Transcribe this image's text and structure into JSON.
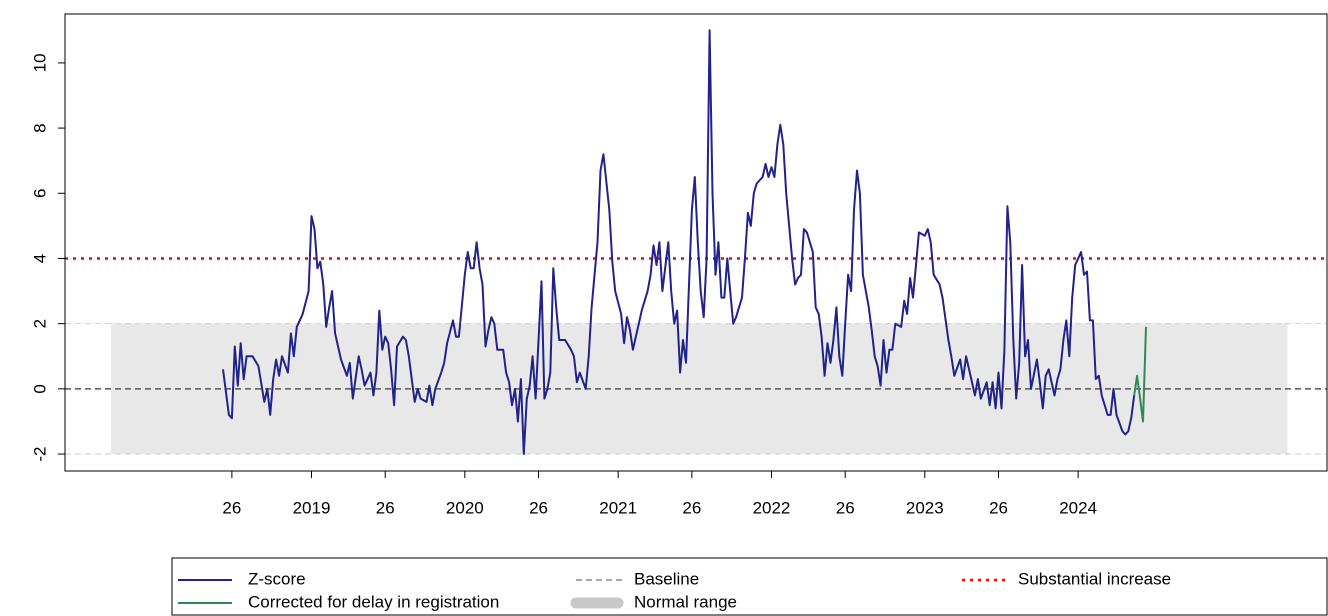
{
  "chart_data": {
    "type": "line",
    "xlim": [
      -31.6,
      396.4
    ],
    "ylim": [
      -2.52,
      11.5
    ],
    "xticks": [
      {
        "value": 25,
        "label": "26"
      },
      {
        "value": 52,
        "label": "2019"
      },
      {
        "value": 77,
        "label": "26"
      },
      {
        "value": 104,
        "label": "2020"
      },
      {
        "value": 129,
        "label": "26"
      },
      {
        "value": 156,
        "label": "2021"
      },
      {
        "value": 181,
        "label": "26"
      },
      {
        "value": 208,
        "label": "2022"
      },
      {
        "value": 233,
        "label": "26"
      },
      {
        "value": 260,
        "label": "2023"
      },
      {
        "value": 285,
        "label": "26"
      },
      {
        "value": 312,
        "label": "2024"
      }
    ],
    "yticks": [
      -2,
      0,
      2,
      4,
      6,
      8,
      10
    ],
    "normal_range": {
      "name": "Normal range",
      "xlim": [
        -16,
        383
      ],
      "ylim": [
        -2,
        2
      ],
      "color": "#e8e8e8"
    },
    "reference_lines": [
      {
        "name": "Baseline",
        "value": 0,
        "color": "#555555",
        "dash": "dashed"
      },
      {
        "name": "Substantial increase",
        "value": 4,
        "color": "#ff0000",
        "dash": "dotted"
      }
    ],
    "legend": {
      "position": "bottom"
    },
    "series": [
      {
        "name": "Z-score",
        "color": "#22228a",
        "x": [
          22,
          24,
          25,
          26,
          27,
          28,
          29,
          30,
          32,
          34,
          36,
          37,
          38,
          39,
          40,
          41,
          42,
          44,
          45,
          46,
          47,
          49,
          51,
          52,
          53,
          54,
          55,
          56,
          57,
          58,
          59,
          60,
          62,
          64,
          65,
          66,
          68,
          69,
          70,
          72,
          73,
          74,
          75,
          76,
          77,
          78,
          79,
          80,
          81,
          83,
          84,
          85,
          87,
          88,
          89,
          91,
          92,
          93,
          94,
          96,
          97,
          98,
          100,
          101,
          102,
          104,
          105,
          106,
          107,
          108,
          109,
          110,
          111,
          112,
          113,
          114,
          115,
          117,
          118,
          119,
          120,
          121,
          122,
          123,
          124,
          125,
          126,
          127,
          128,
          130,
          131,
          132,
          133,
          134,
          135,
          136,
          138,
          140,
          141,
          142,
          143,
          145,
          146,
          147,
          149,
          150,
          151,
          153,
          154,
          155,
          157,
          158,
          159,
          160,
          161,
          163,
          164,
          166,
          167,
          168,
          169,
          170,
          171,
          173,
          174,
          175,
          176,
          177,
          178,
          179,
          181,
          182,
          183,
          184,
          185,
          186,
          187,
          188,
          189,
          190,
          191,
          192,
          193,
          194,
          195,
          196,
          198,
          199,
          200,
          201,
          202,
          203,
          205,
          206,
          207,
          208,
          209,
          210,
          211,
          212,
          213,
          215,
          216,
          217,
          218,
          219,
          220,
          222,
          223,
          224,
          225,
          226,
          227,
          228,
          229,
          230,
          231,
          232,
          233,
          234,
          235,
          236,
          237,
          238,
          239,
          241,
          242,
          243,
          244,
          245,
          246,
          247,
          248,
          249,
          250,
          252,
          253,
          254,
          255,
          256,
          257,
          258,
          260,
          261,
          262,
          263,
          265,
          266,
          268,
          269,
          270,
          272,
          273,
          274,
          276,
          277,
          278,
          279,
          281,
          282,
          283,
          284,
          285,
          286,
          287,
          288,
          289,
          290,
          291,
          292,
          293,
          294,
          295,
          296,
          298,
          299,
          300,
          301,
          302,
          304,
          305,
          306,
          307,
          308,
          309,
          310,
          311,
          313,
          314,
          315,
          316,
          317,
          318,
          319,
          320,
          321,
          322,
          323,
          324,
          325,
          327,
          328,
          329,
          330,
          331
        ],
        "values": [
          0.6,
          -0.8,
          -0.9,
          1.3,
          0.1,
          1.4,
          0.3,
          1.0,
          1.0,
          0.7,
          -0.4,
          0.0,
          -0.8,
          0.3,
          0.9,
          0.4,
          1.0,
          0.5,
          1.7,
          1.0,
          1.9,
          2.3,
          3.0,
          5.3,
          4.9,
          3.7,
          3.9,
          3.2,
          1.9,
          2.5,
          3.0,
          1.7,
          0.9,
          0.4,
          0.8,
          -0.3,
          1.0,
          0.6,
          0.1,
          0.5,
          -0.2,
          0.5,
          2.4,
          1.2,
          1.6,
          1.4,
          0.6,
          -0.5,
          1.3,
          1.6,
          1.5,
          1.0,
          -0.4,
          0.0,
          -0.3,
          -0.4,
          0.1,
          -0.5,
          0.0,
          0.5,
          0.8,
          1.4,
          2.1,
          1.6,
          1.6,
          3.5,
          4.2,
          3.7,
          3.7,
          4.5,
          3.7,
          3.2,
          1.3,
          1.8,
          2.2,
          2.0,
          1.2,
          1.2,
          0.5,
          0.2,
          -0.5,
          0.0,
          -1.0,
          0.3,
          -2.0,
          -0.3,
          0.1,
          1.0,
          -0.3,
          3.3,
          -0.3,
          0.0,
          0.5,
          3.7,
          2.5,
          1.5,
          1.5,
          1.2,
          1.0,
          0.2,
          0.5,
          0.0,
          1.0,
          2.5,
          4.5,
          6.7,
          7.2,
          5.5,
          3.9,
          3.0,
          2.3,
          1.4,
          2.2,
          1.8,
          1.2,
          2.0,
          2.4,
          3.0,
          3.5,
          4.4,
          3.8,
          4.5,
          3.0,
          4.5,
          3.0,
          2.0,
          2.4,
          0.5,
          1.5,
          0.8,
          5.5,
          6.5,
          4.5,
          3.0,
          2.2,
          4.0,
          11.0,
          6.0,
          3.5,
          4.5,
          2.8,
          2.8,
          4.0,
          3.0,
          2.0,
          2.2,
          2.8,
          4.0,
          5.4,
          5.0,
          6.0,
          6.3,
          6.5,
          6.9,
          6.5,
          6.8,
          6.5,
          7.5,
          8.1,
          7.5,
          6.0,
          4.0,
          3.2,
          3.4,
          3.5,
          4.9,
          4.8,
          4.2,
          2.5,
          2.3,
          1.6,
          0.4,
          1.4,
          0.8,
          1.5,
          2.5,
          1.0,
          0.4,
          2.0,
          3.5,
          3.0,
          5.5,
          6.7,
          6.0,
          3.5,
          2.5,
          1.8,
          1.0,
          0.7,
          0.1,
          1.5,
          0.5,
          1.2,
          1.2,
          2.0,
          1.9,
          2.7,
          2.3,
          3.4,
          2.8,
          3.8,
          4.8,
          4.7,
          4.9,
          4.5,
          3.5,
          3.2,
          2.8,
          1.5,
          1.0,
          0.4,
          0.9,
          0.3,
          1.0,
          0.2,
          -0.2,
          0.3,
          -0.3,
          0.2,
          -0.5,
          0.2,
          -0.6,
          0.5,
          -0.6,
          1.2,
          5.6,
          4.5,
          1.5,
          -0.3,
          0.8,
          3.8,
          1.0,
          1.5,
          0.0,
          0.9,
          0.2,
          -0.6,
          0.4,
          0.6,
          -0.2,
          0.3,
          0.6,
          1.5,
          2.1,
          1.0,
          2.8,
          3.8,
          4.2,
          3.5,
          3.6,
          2.1,
          2.1,
          0.3,
          0.4,
          -0.2,
          -0.5,
          -0.8,
          -0.8,
          0.0,
          -0.8,
          -1.3,
          -1.4,
          -1.3,
          -0.9,
          -0.2
        ]
      },
      {
        "name": "Corrected for delay in registration",
        "color": "#2e8b57",
        "x": [
          331,
          332,
          333,
          334,
          335
        ],
        "values": [
          -0.2,
          0.4,
          -0.3,
          -1.0,
          1.9
        ]
      }
    ]
  }
}
